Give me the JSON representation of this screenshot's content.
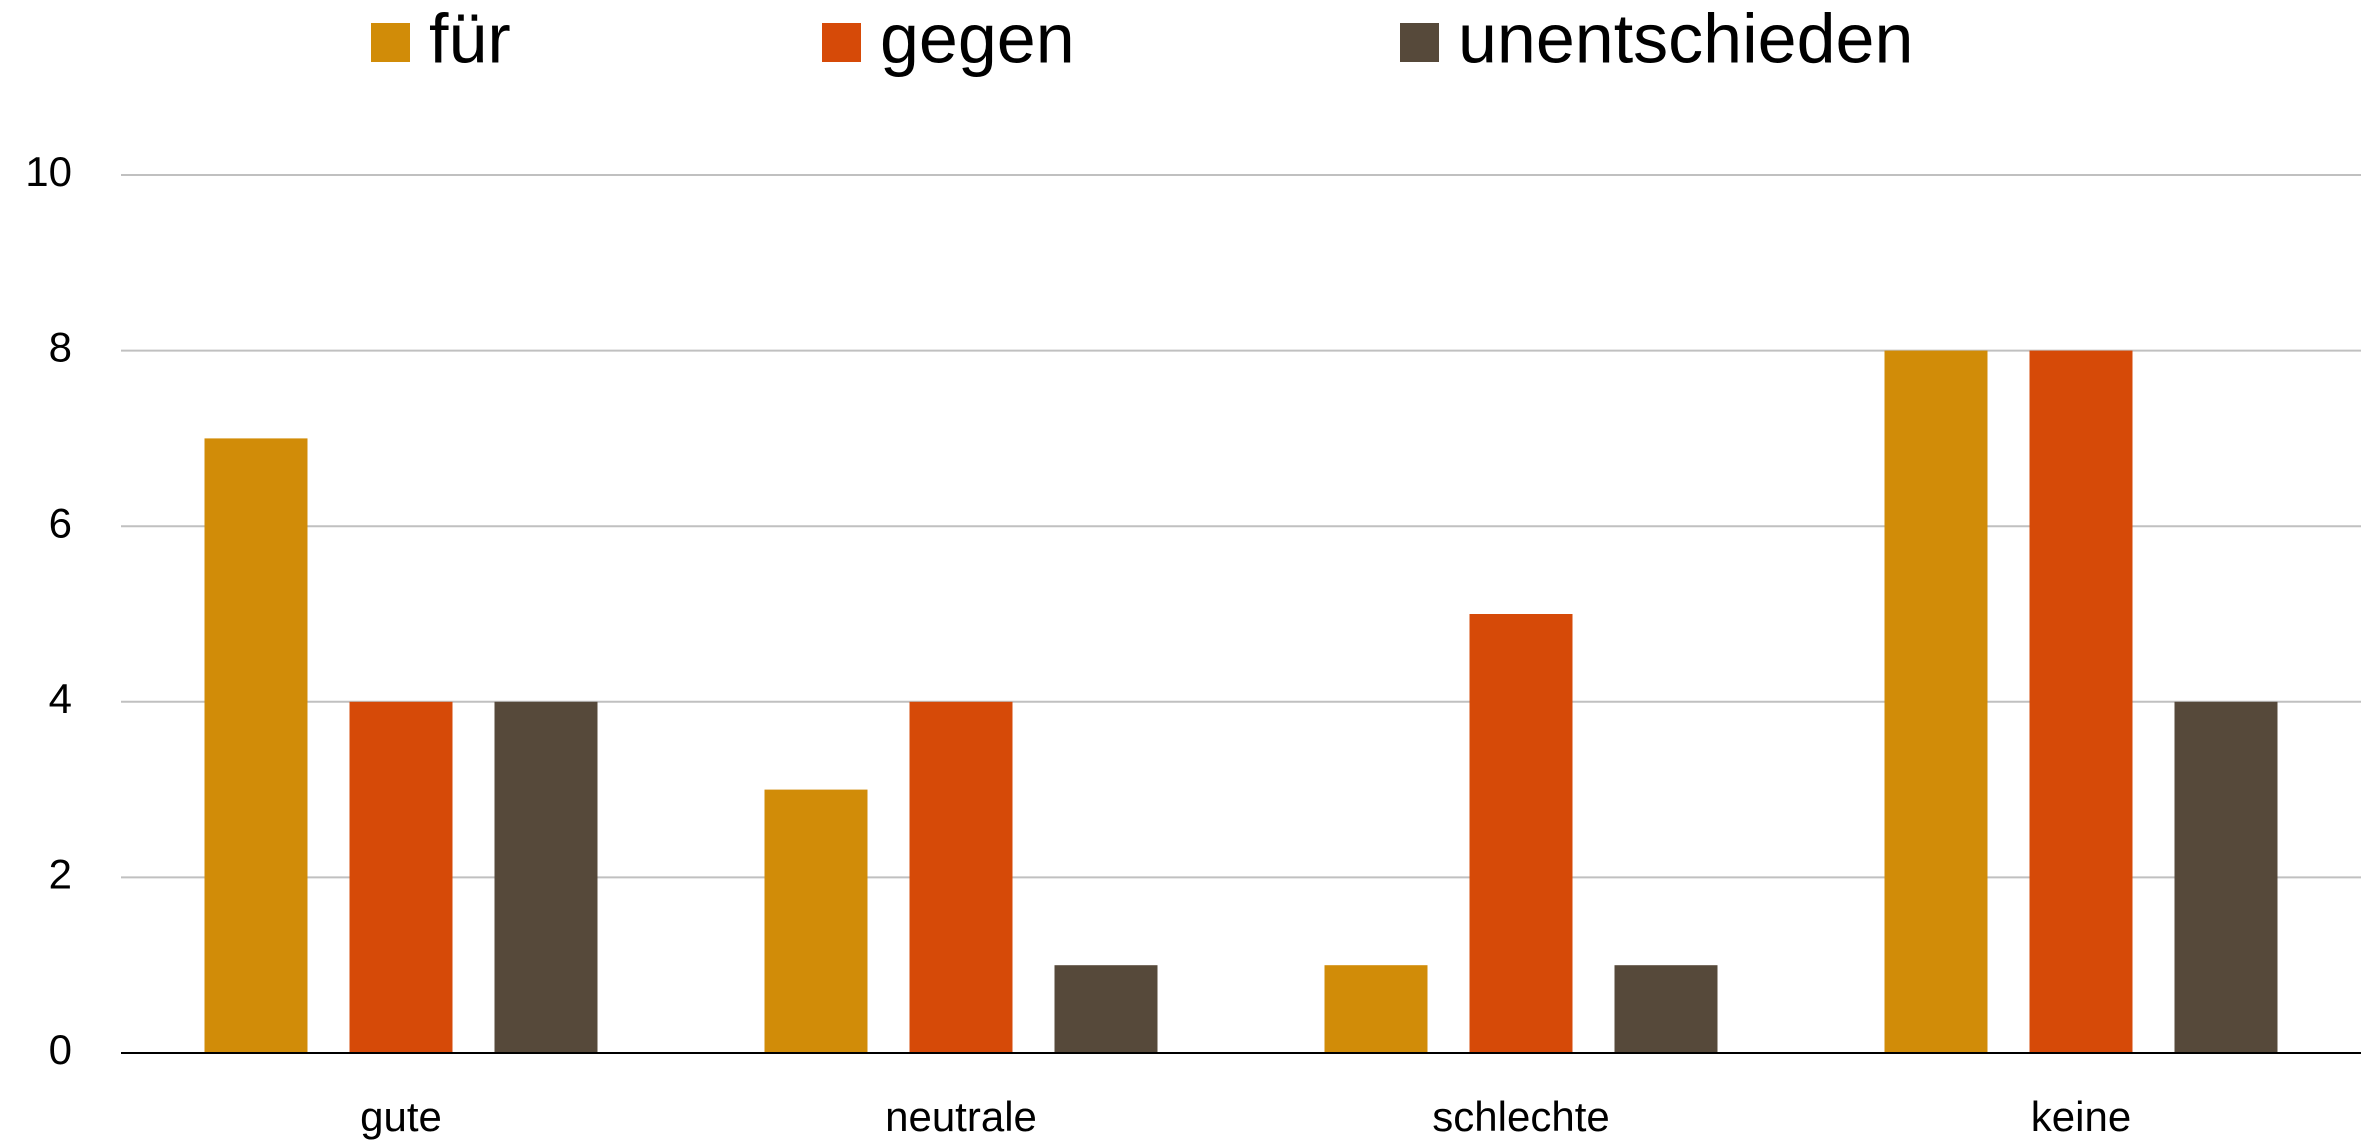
{
  "chart_data": {
    "type": "bar",
    "categories": [
      "gute",
      "neutrale",
      "schlechte",
      "keine"
    ],
    "series": [
      {
        "name": "für",
        "color": "#d18c08",
        "values": [
          7,
          3,
          1,
          8
        ]
      },
      {
        "name": "gegen",
        "color": "#d64a08",
        "values": [
          4,
          4,
          5,
          8
        ]
      },
      {
        "name": "unentschieden",
        "color": "#56493a",
        "values": [
          4,
          1,
          1,
          4
        ]
      }
    ],
    "ylim": [
      0,
      10
    ],
    "yticks": [
      0,
      2,
      4,
      6,
      8,
      10
    ],
    "grid": true,
    "legend": "top"
  }
}
